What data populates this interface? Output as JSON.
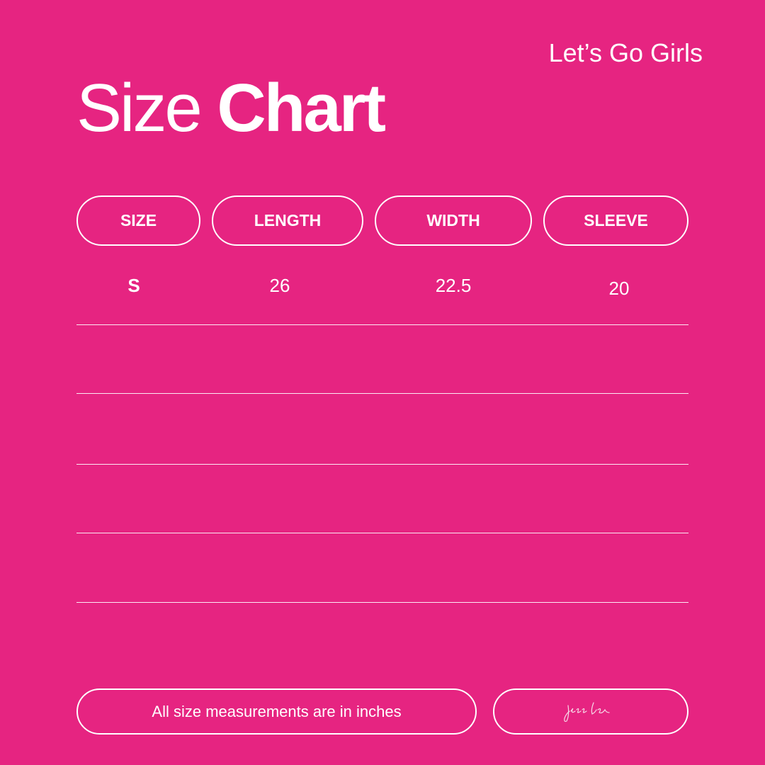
{
  "brand": "Let’s Go Girls",
  "title": {
    "regular": "Size",
    "bold": "Chart"
  },
  "headers": [
    "SIZE",
    "LENGTH",
    "WIDTH",
    "SLEEVE"
  ],
  "rows": [
    {
      "size": "S",
      "length": "26",
      "width": "22.5",
      "sleeve": "20"
    }
  ],
  "footer": {
    "note": "All size measurements are in inches",
    "signature": "jess lea"
  },
  "colors": {
    "background": "#E62481",
    "foreground": "#FFFFFF"
  }
}
